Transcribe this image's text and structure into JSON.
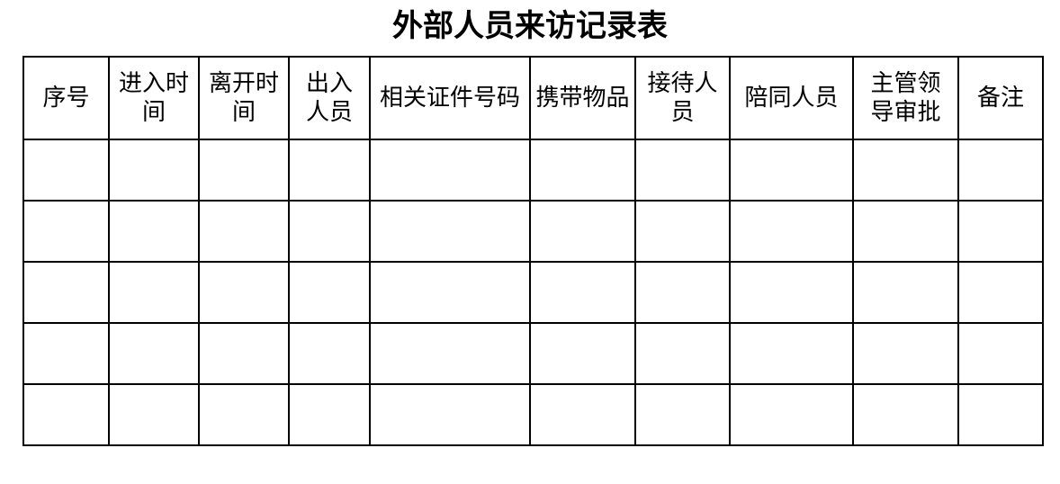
{
  "document": {
    "title": "外部人员来访记录表"
  },
  "table": {
    "headers": [
      "序号",
      "进入时\n间",
      "离开时\n间",
      "出入\n人员",
      "相关证件号码",
      "携带物品",
      "接待人\n员",
      "陪同人员",
      "主管领\n导审批",
      "备注"
    ],
    "row_count": 5,
    "border_color": "#000000"
  }
}
